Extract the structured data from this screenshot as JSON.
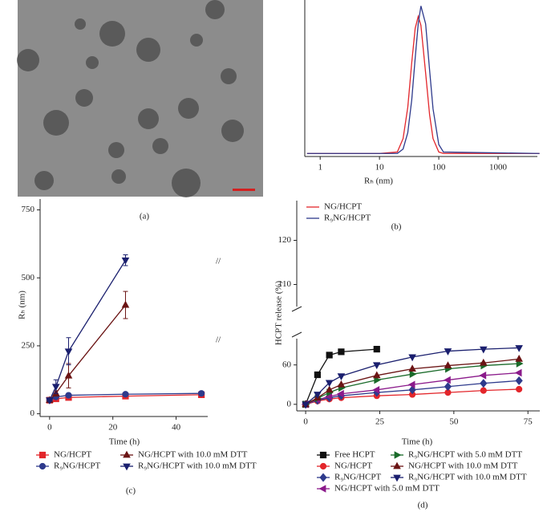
{
  "image": {
    "caption": "(a)"
  },
  "chart_data": [
    {
      "type": "line",
      "caption": "(b)",
      "xlabel": "Rₕ (nm)",
      "xscale": "log",
      "xlim": [
        0.55,
        4600
      ],
      "xticks": [
        1,
        10,
        100,
        1000
      ],
      "ylim": [
        -0.02,
        1.03
      ],
      "x": [
        0.6,
        10,
        20,
        25,
        30,
        35,
        40,
        45,
        50,
        60,
        70,
        80,
        100,
        120,
        5000
      ],
      "series": [
        {
          "name": "NG/HCPT",
          "color": "#e3262b",
          "values": [
            0,
            0,
            0.01,
            0.1,
            0.31,
            0.61,
            0.84,
            0.92,
            0.86,
            0.54,
            0.26,
            0.1,
            0.01,
            0,
            0
          ]
        },
        {
          "name": "R₉NG/HCPT",
          "color": "#2e3a8c",
          "values": [
            0,
            0,
            0,
            0.03,
            0.14,
            0.36,
            0.64,
            0.87,
            0.99,
            0.87,
            0.56,
            0.3,
            0.06,
            0.01,
            0
          ]
        }
      ]
    },
    {
      "type": "line",
      "caption": "(c)",
      "xlabel": "Time (h)",
      "ylabel": "Rₕ (nm)",
      "xlim": [
        -3,
        50
      ],
      "xticks": [
        0,
        20,
        40
      ],
      "ylim": [
        -10,
        790
      ],
      "yticks": [
        0,
        250,
        500,
        750
      ],
      "annotations": [
        "//",
        "//"
      ],
      "x": [
        0,
        2,
        6,
        24,
        48
      ],
      "series": [
        {
          "name": "NG/HCPT",
          "color": "#e3262b",
          "marker": "square",
          "values": [
            50,
            55,
            60,
            65,
            70
          ],
          "errors": [
            3,
            3,
            4,
            5,
            5
          ]
        },
        {
          "name": "R₉NG/HCPT",
          "color": "#2e3a8c",
          "marker": "circle",
          "values": [
            50,
            62,
            68,
            72,
            75
          ],
          "errors": [
            3,
            4,
            4,
            5,
            5
          ]
        },
        {
          "name": "NG/HCPT with 10.0 mM DTT",
          "color": "#6b1414",
          "marker": "triangle-up",
          "values": [
            50,
            75,
            140,
            400,
            null
          ],
          "errors": [
            5,
            10,
            45,
            50,
            null
          ]
        },
        {
          "name": "R₉NG/HCPT with 10.0 mM DTT",
          "color": "#1a1f6e",
          "marker": "triangle-down",
          "values": [
            50,
            100,
            230,
            565,
            null
          ],
          "errors": [
            5,
            25,
            50,
            20,
            null
          ]
        }
      ]
    },
    {
      "type": "line",
      "caption": "(d)",
      "xlabel": "Time (h)",
      "ylabel": "HCPT release (%)",
      "xlim": [
        -3,
        79
      ],
      "xticks": [
        0,
        25,
        50,
        75
      ],
      "ylim": [
        -10,
        129
      ],
      "ybreak": [
        100,
        105
      ],
      "yticks": [
        0,
        60,
        110,
        120
      ],
      "x": [
        0,
        4,
        8,
        12,
        24,
        36,
        48,
        60,
        72
      ],
      "series": [
        {
          "name": "Free HCPT",
          "color": "#111111",
          "marker": "square",
          "values": [
            0,
            45,
            75,
            80,
            84,
            null,
            null,
            null,
            null
          ]
        },
        {
          "name": "NG/HCPT",
          "color": "#e3262b",
          "marker": "circle",
          "values": [
            0,
            5,
            8,
            10,
            13,
            15,
            18,
            21,
            23
          ]
        },
        {
          "name": "R₉NG/HCPT",
          "color": "#2e3a8c",
          "marker": "diamond",
          "values": [
            0,
            6,
            10,
            13,
            18,
            22,
            27,
            32,
            36
          ]
        },
        {
          "name": "NG/HCPT with 5.0 mM DTT",
          "color": "#8b1a8b",
          "marker": "triangle-left",
          "values": [
            0,
            7,
            12,
            16,
            22,
            30,
            37,
            44,
            48
          ]
        },
        {
          "name": "R₉NG/HCPT with 5.0 mM DTT",
          "color": "#1a6b2a",
          "marker": "triangle-right",
          "values": [
            0,
            9,
            18,
            25,
            37,
            46,
            54,
            59,
            62
          ]
        },
        {
          "name": "NG/HCPT with 10.0 mM DTT",
          "color": "#6b1414",
          "marker": "triangle-up",
          "values": [
            0,
            10,
            22,
            30,
            44,
            54,
            59,
            63,
            69
          ]
        },
        {
          "name": "R₉NG/HCPT with 10.0 mM DTT",
          "color": "#1a1f6e",
          "marker": "triangle-down",
          "values": [
            0,
            15,
            33,
            43,
            60,
            72,
            81,
            84,
            86
          ]
        }
      ]
    }
  ]
}
